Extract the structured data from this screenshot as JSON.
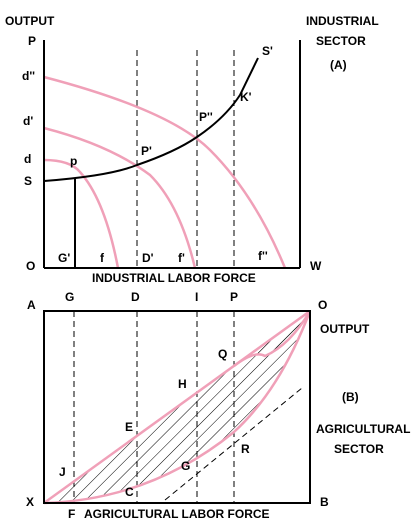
{
  "panel_a": {
    "axis_title_y": "OUTPUT",
    "sector_line1": "INDUSTRIAL",
    "sector_line2": "SECTOR",
    "panel_label": "(A)",
    "axis_title_x": "INDUSTRIAL LABOR FORCE",
    "y_labels": [
      "P",
      "d''",
      "d'",
      "d",
      "S",
      "O"
    ],
    "x_labels": [
      "G'",
      "f",
      "D'",
      "f'",
      "f''",
      "W"
    ],
    "point_labels": [
      "S'",
      "K'",
      "P''",
      "P'",
      "p"
    ]
  },
  "panel_b": {
    "panel_label": "(B)",
    "output_label": "OUTPUT",
    "sector_line1": "AGRICULTURAL",
    "sector_line2": "SECTOR",
    "axis_title_x": "AGRICULTURAL LABOR FORCE",
    "corner_labels": [
      "A",
      "O",
      "X",
      "B",
      "F"
    ],
    "top_labels": [
      "G",
      "D",
      "I",
      "P"
    ],
    "point_labels": [
      "Q",
      "H",
      "E",
      "G",
      "R",
      "J",
      "C"
    ]
  }
}
